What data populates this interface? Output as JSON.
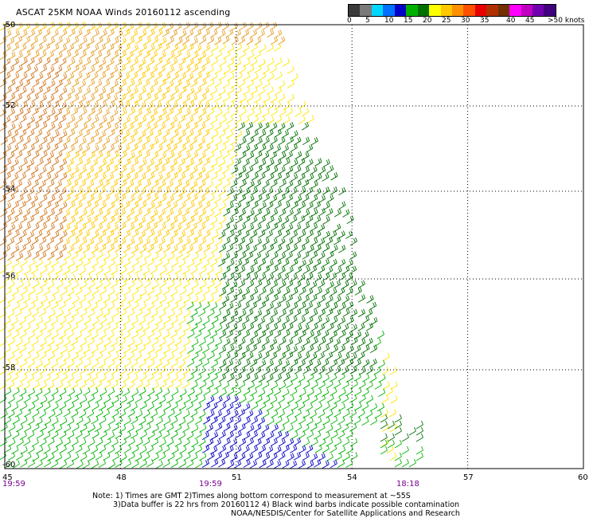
{
  "title": "ASCAT 25KM NOAA Winds 20160112 ascending",
  "colorbar": {
    "colors": [
      "#3a3a3a",
      "#7a7a7a",
      "#00d8ff",
      "#0070ff",
      "#0000c8",
      "#00b000",
      "#007000",
      "#ffff00",
      "#ffc800",
      "#ff9000",
      "#ff5000",
      "#e80000",
      "#b03000",
      "#703000",
      "#ff00ff",
      "#c000c0",
      "#7000b0",
      "#400080"
    ],
    "labels": [
      "0",
      "5",
      "10",
      "15",
      "20",
      "25",
      "30",
      "35",
      "40",
      "45",
      ">50 knots"
    ]
  },
  "axes": {
    "x_ticks": [
      "45",
      "48",
      "51",
      "54",
      "57",
      "60"
    ],
    "y_ticks": [
      "-50",
      "-52",
      "-54",
      "-56",
      "-58",
      "-60"
    ],
    "x_range": [
      45,
      60
    ],
    "y_range": [
      -60,
      -50
    ]
  },
  "time_labels": [
    "19:59",
    "19:59",
    "18:18"
  ],
  "notes": [
    "Note: 1) Times are GMT 2)Times along bottom correspond to measurement at ~55S",
    "3)Data buffer is 22 hrs from 20160112 4) Black wind barbs indicate possible contamination",
    "NOAA/NESDIS/Center for Satellite Applications and Research"
  ],
  "barb_colors": {
    "orange": "#d2781e",
    "light_orange": "#e6a028",
    "gold": "#ffc800",
    "yellow": "#ffe600",
    "green": "#00b400",
    "dark_green": "#007000",
    "blue": "#0000c8"
  }
}
